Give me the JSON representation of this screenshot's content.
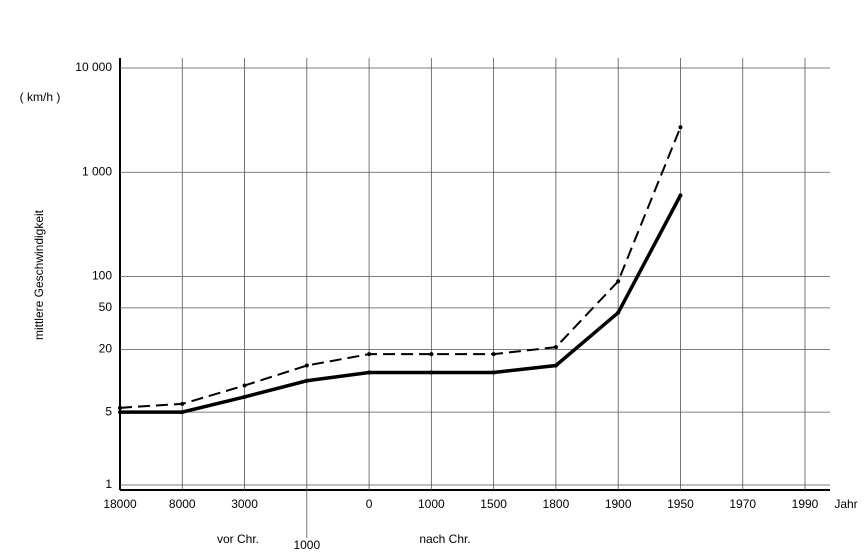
{
  "chart_data": {
    "type": "line",
    "y_label": "mittlere Geschwindigkeit",
    "y_unit": "( km/h )",
    "x_label": "Jahr",
    "annotations": [
      "vor Chr.",
      "nach Chr."
    ],
    "categories": [
      "18000",
      "8000",
      "3000",
      "1000",
      "0",
      "1000",
      "1500",
      "1800",
      "1900",
      "1950",
      "1970",
      "1990"
    ],
    "series": [
      {
        "color": "#000000",
        "dash": false,
        "values": [
          5,
          5,
          7,
          10,
          12,
          12,
          12,
          14,
          45,
          600,
          null,
          null
        ]
      },
      {
        "color": "#000000",
        "dash": true,
        "values": [
          5.5,
          6,
          9,
          14,
          18,
          18,
          18,
          21,
          90,
          2700,
          null,
          null
        ]
      }
    ],
    "log_scale": true,
    "ylim": [
      1,
      10000
    ],
    "yticks": [
      1,
      5,
      20,
      50,
      100,
      {
        "value": 1000,
        "label": "1 000"
      },
      {
        "value": 10000,
        "label": "10 000"
      }
    ],
    "grid": true
  }
}
